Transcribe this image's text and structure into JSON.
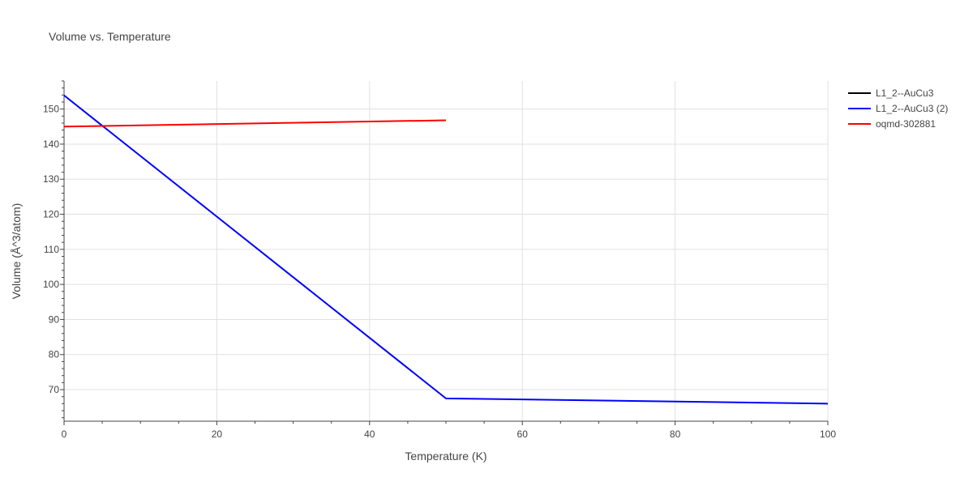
{
  "chart_data": {
    "type": "line",
    "title": "Volume vs. Temperature",
    "xlabel": "Temperature (K)",
    "ylabel": "Volume (Å^3/atom)",
    "xlim": [
      0,
      100
    ],
    "ylim": [
      61,
      158
    ],
    "xticks": [
      0,
      20,
      40,
      60,
      80,
      100
    ],
    "yticks": [
      70,
      80,
      90,
      100,
      110,
      120,
      130,
      140,
      150
    ],
    "grid": true,
    "legend_position": "top-right",
    "series": [
      {
        "name": "L1_2--AuCu3",
        "color": "#000000",
        "x": [],
        "y": []
      },
      {
        "name": "L1_2--AuCu3 (2)",
        "color": "#0000ff",
        "x": [
          0,
          50,
          100
        ],
        "y": [
          153.9,
          67.5,
          66.0
        ]
      },
      {
        "name": "oqmd-302881",
        "color": "#ff0000",
        "x": [
          0,
          50
        ],
        "y": [
          145.0,
          146.8
        ]
      }
    ]
  }
}
